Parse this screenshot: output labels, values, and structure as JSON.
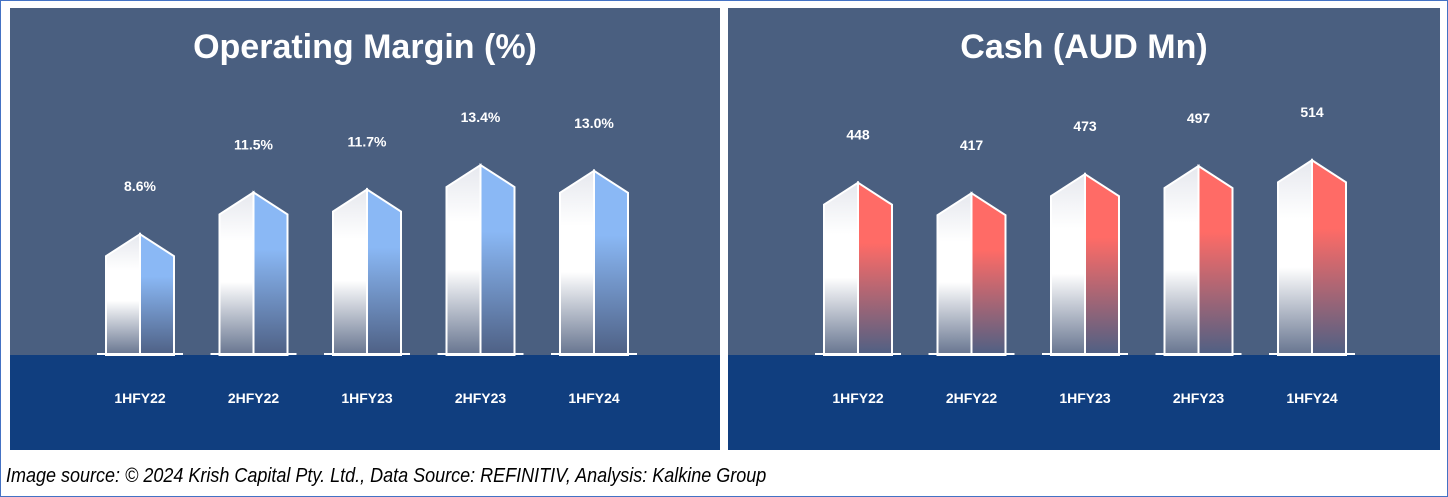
{
  "caption": "Image source: © 2024 Krish Capital Pty. Ltd., Data Source: REFINITIV, Analysis: Kalkine Group",
  "chart_data": [
    {
      "type": "bar",
      "title": "Operating Margin (%)",
      "categories": [
        "1HFY22",
        "2HFY22",
        "1HFY23",
        "2HFY23",
        "1HFY24"
      ],
      "values": [
        8.6,
        11.5,
        11.7,
        13.4,
        13.0
      ],
      "labels": [
        "8.6%",
        "11.5%",
        "11.7%",
        "13.4%",
        "13.0%"
      ],
      "accent": "#8ab8f5",
      "xlabel": "",
      "ylabel": "",
      "grid": false
    },
    {
      "type": "bar",
      "title": "Cash (AUD Mn)",
      "categories": [
        "1HFY22",
        "2HFY22",
        "1HFY23",
        "2HFY23",
        "1HFY24"
      ],
      "values": [
        448,
        417,
        473,
        497,
        514
      ],
      "labels": [
        "448",
        "417",
        "473",
        "497",
        "514"
      ],
      "accent": "#ff6b66",
      "xlabel": "",
      "ylabel": "",
      "grid": false
    }
  ]
}
